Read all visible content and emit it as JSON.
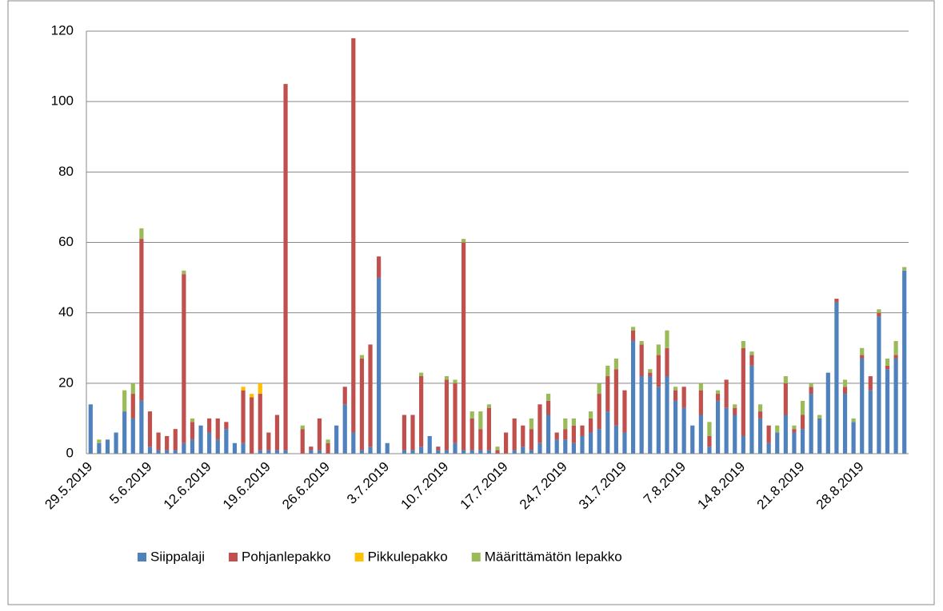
{
  "chart_data": {
    "type": "stacked_bar",
    "categories": [
      "29.5.2019",
      null,
      null,
      null,
      null,
      null,
      null,
      "5.6.2019",
      null,
      null,
      null,
      null,
      null,
      null,
      "12.6.2019",
      null,
      null,
      null,
      null,
      null,
      null,
      "19.6.2019",
      null,
      null,
      null,
      null,
      null,
      null,
      "26.6.2019",
      null,
      null,
      null,
      null,
      null,
      null,
      "3.7.2019",
      null,
      null,
      null,
      null,
      null,
      null,
      "10.7.2019",
      null,
      null,
      null,
      null,
      null,
      null,
      "17.7.2019",
      null,
      null,
      null,
      null,
      null,
      null,
      "24.7.2019",
      null,
      null,
      null,
      null,
      null,
      null,
      "31.7.2019",
      null,
      null,
      null,
      null,
      null,
      null,
      "7.8.2019",
      null,
      null,
      null,
      null,
      null,
      null,
      "14.8.2019",
      null,
      null,
      null,
      null,
      null,
      null,
      "21.8.2019",
      null,
      null,
      null,
      null,
      null,
      null,
      "28.8.2019",
      null,
      null,
      null,
      null,
      null
    ],
    "series": [
      {
        "name": "Siippalaji",
        "color": "#4f81bd",
        "values": [
          14,
          3,
          4,
          6,
          12,
          10,
          15,
          2,
          1,
          1,
          1,
          3,
          4,
          8,
          6,
          4,
          7,
          3,
          3,
          0,
          1,
          1,
          1,
          1,
          0,
          0,
          1,
          1,
          0,
          8,
          14,
          6,
          1,
          2,
          50,
          3,
          0,
          1,
          1,
          2,
          5,
          1,
          1,
          3,
          1,
          1,
          1,
          1,
          0,
          0,
          1,
          2,
          1,
          3,
          11,
          4,
          4,
          3,
          5,
          6,
          7,
          12,
          8,
          6,
          32,
          22,
          22,
          19,
          22,
          15,
          13,
          8,
          11,
          2,
          15,
          13,
          11,
          5,
          25,
          10,
          3,
          6,
          11,
          6,
          7,
          17,
          10,
          23,
          43,
          17,
          9,
          27,
          18,
          39,
          24,
          27,
          52
        ]
      },
      {
        "name": "Pohjanlepakko",
        "color": "#c0504d",
        "values": [
          0,
          0,
          0,
          0,
          0,
          7,
          46,
          10,
          5,
          4,
          6,
          48,
          5,
          0,
          4,
          6,
          2,
          0,
          15,
          16,
          16,
          5,
          10,
          104,
          0,
          7,
          1,
          9,
          3,
          0,
          5,
          112,
          26,
          29,
          6,
          0,
          0,
          10,
          10,
          20,
          0,
          1,
          20,
          17,
          59,
          9,
          6,
          12,
          1,
          6,
          9,
          6,
          6,
          11,
          4,
          2,
          3,
          5,
          3,
          4,
          10,
          10,
          16,
          12,
          3,
          9,
          1,
          9,
          8,
          3,
          6,
          0,
          7,
          3,
          2,
          8,
          2,
          25,
          3,
          2,
          5,
          0,
          9,
          1,
          4,
          2,
          0,
          0,
          1,
          2,
          0,
          1,
          4,
          1,
          1,
          1,
          0
        ]
      },
      {
        "name": "Pikkulepakko",
        "color": "#ffc000",
        "values": [
          0,
          0,
          0,
          0,
          0,
          0,
          0,
          0,
          0,
          0,
          0,
          0,
          0,
          0,
          0,
          0,
          0,
          0,
          1,
          1,
          3,
          0,
          0,
          0,
          0,
          0,
          0,
          0,
          0,
          0,
          0,
          0,
          0,
          0,
          0,
          0,
          0,
          0,
          0,
          0,
          0,
          0,
          0,
          0,
          0,
          0,
          0,
          0,
          0,
          0,
          0,
          0,
          0,
          0,
          0,
          0,
          0,
          0,
          0,
          0,
          0,
          0,
          0,
          0,
          0,
          0,
          0,
          0,
          0,
          0,
          0,
          0,
          0,
          0,
          0,
          0,
          0,
          0,
          0,
          0,
          0,
          0,
          0,
          0,
          0,
          0,
          0,
          0,
          0,
          0,
          0,
          0,
          0,
          0,
          0,
          0,
          0
        ]
      },
      {
        "name": "Määrittämätön lepakko",
        "color": "#9bbb59",
        "values": [
          0,
          1,
          0,
          0,
          6,
          3,
          3,
          0,
          0,
          0,
          0,
          1,
          1,
          0,
          0,
          0,
          0,
          0,
          0,
          0,
          0,
          0,
          0,
          0,
          0,
          1,
          0,
          0,
          1,
          0,
          0,
          0,
          1,
          0,
          0,
          0,
          0,
          0,
          0,
          1,
          0,
          0,
          1,
          1,
          1,
          2,
          5,
          1,
          1,
          0,
          0,
          0,
          3,
          0,
          2,
          0,
          3,
          2,
          0,
          2,
          3,
          3,
          3,
          0,
          1,
          1,
          1,
          3,
          5,
          1,
          0,
          0,
          2,
          4,
          1,
          0,
          1,
          2,
          1,
          2,
          0,
          2,
          2,
          1,
          4,
          1,
          1,
          0,
          0,
          2,
          1,
          2,
          0,
          1,
          2,
          4,
          1
        ]
      }
    ],
    "ylim": [
      0,
      120
    ],
    "yticks": [
      0,
      20,
      40,
      60,
      80,
      100,
      120
    ],
    "grid": true,
    "legend": "bottom"
  }
}
